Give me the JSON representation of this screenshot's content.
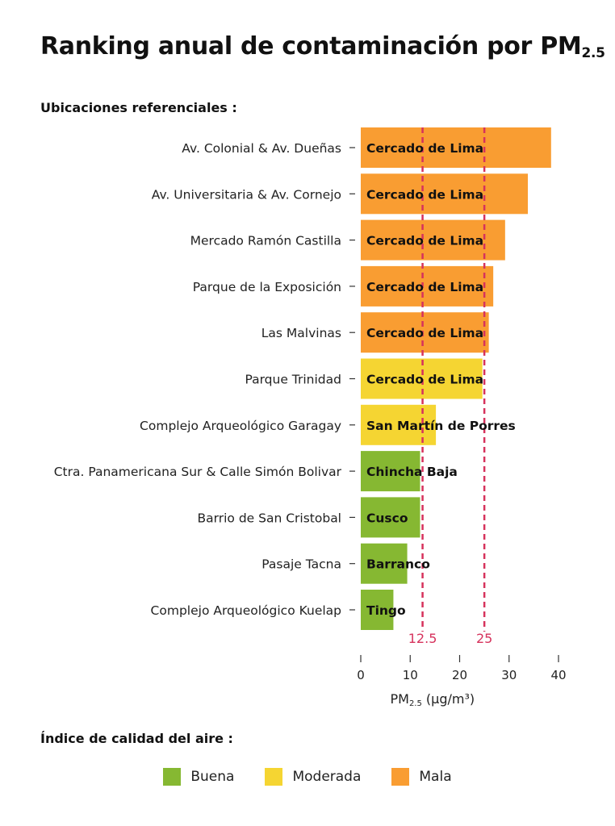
{
  "title": {
    "main": "Ranking anual de contaminación por PM",
    "sub": "2.5"
  },
  "locations_heading": "Ubicaciones referenciales :",
  "legend_heading": "Índice de calidad del aire :",
  "colors": {
    "buena": "#86b832",
    "moderada": "#f5d532",
    "mala": "#f99d32",
    "reference_line": "#d6325c"
  },
  "legend": [
    {
      "label": "Buena",
      "color": "#86b832"
    },
    {
      "label": "Moderada",
      "color": "#f5d532"
    },
    {
      "label": "Mala",
      "color": "#f99d32"
    }
  ],
  "chart_data": {
    "type": "bar",
    "orientation": "horizontal",
    "categories": [
      "Av. Colonial & Av. Dueñas",
      "Av. Universitaria & Av. Cornejo",
      "Mercado Ramón Castilla",
      "Parque de la Exposición",
      "Las Malvinas",
      "Parque Trinidad",
      "Complejo Arqueológico Garagay",
      "Ctra. Panamericana Sur & Calle Simón Bolivar",
      "Barrio de San Cristobal",
      "Pasaje Tacna",
      "Complejo Arqueológico Kuelap"
    ],
    "values": [
      38.5,
      33.8,
      29.2,
      26.8,
      25.9,
      24.6,
      15.2,
      12.0,
      12.0,
      9.4,
      6.6
    ],
    "bar_labels": [
      "Cercado de Lima",
      "Cercado de Lima",
      "Cercado de Lima",
      "Cercado de Lima",
      "Cercado de Lima",
      "Cercado de Lima",
      "San Martín de Porres",
      "Chincha Baja",
      "Cusco",
      "Barranco",
      "Tingo"
    ],
    "quality": [
      "mala",
      "mala",
      "mala",
      "mala",
      "mala",
      "moderada",
      "moderada",
      "buena",
      "buena",
      "buena",
      "buena"
    ],
    "reference_lines": [
      {
        "value": 12.5,
        "label": "12.5"
      },
      {
        "value": 25,
        "label": "25"
      }
    ],
    "x_ticks": [
      0,
      10,
      20,
      30,
      40
    ],
    "xlim": [
      0,
      40
    ],
    "xlabel": "PM",
    "xlabel_sub": "2.5",
    "xlabel_unit": " (µg/m³)"
  }
}
